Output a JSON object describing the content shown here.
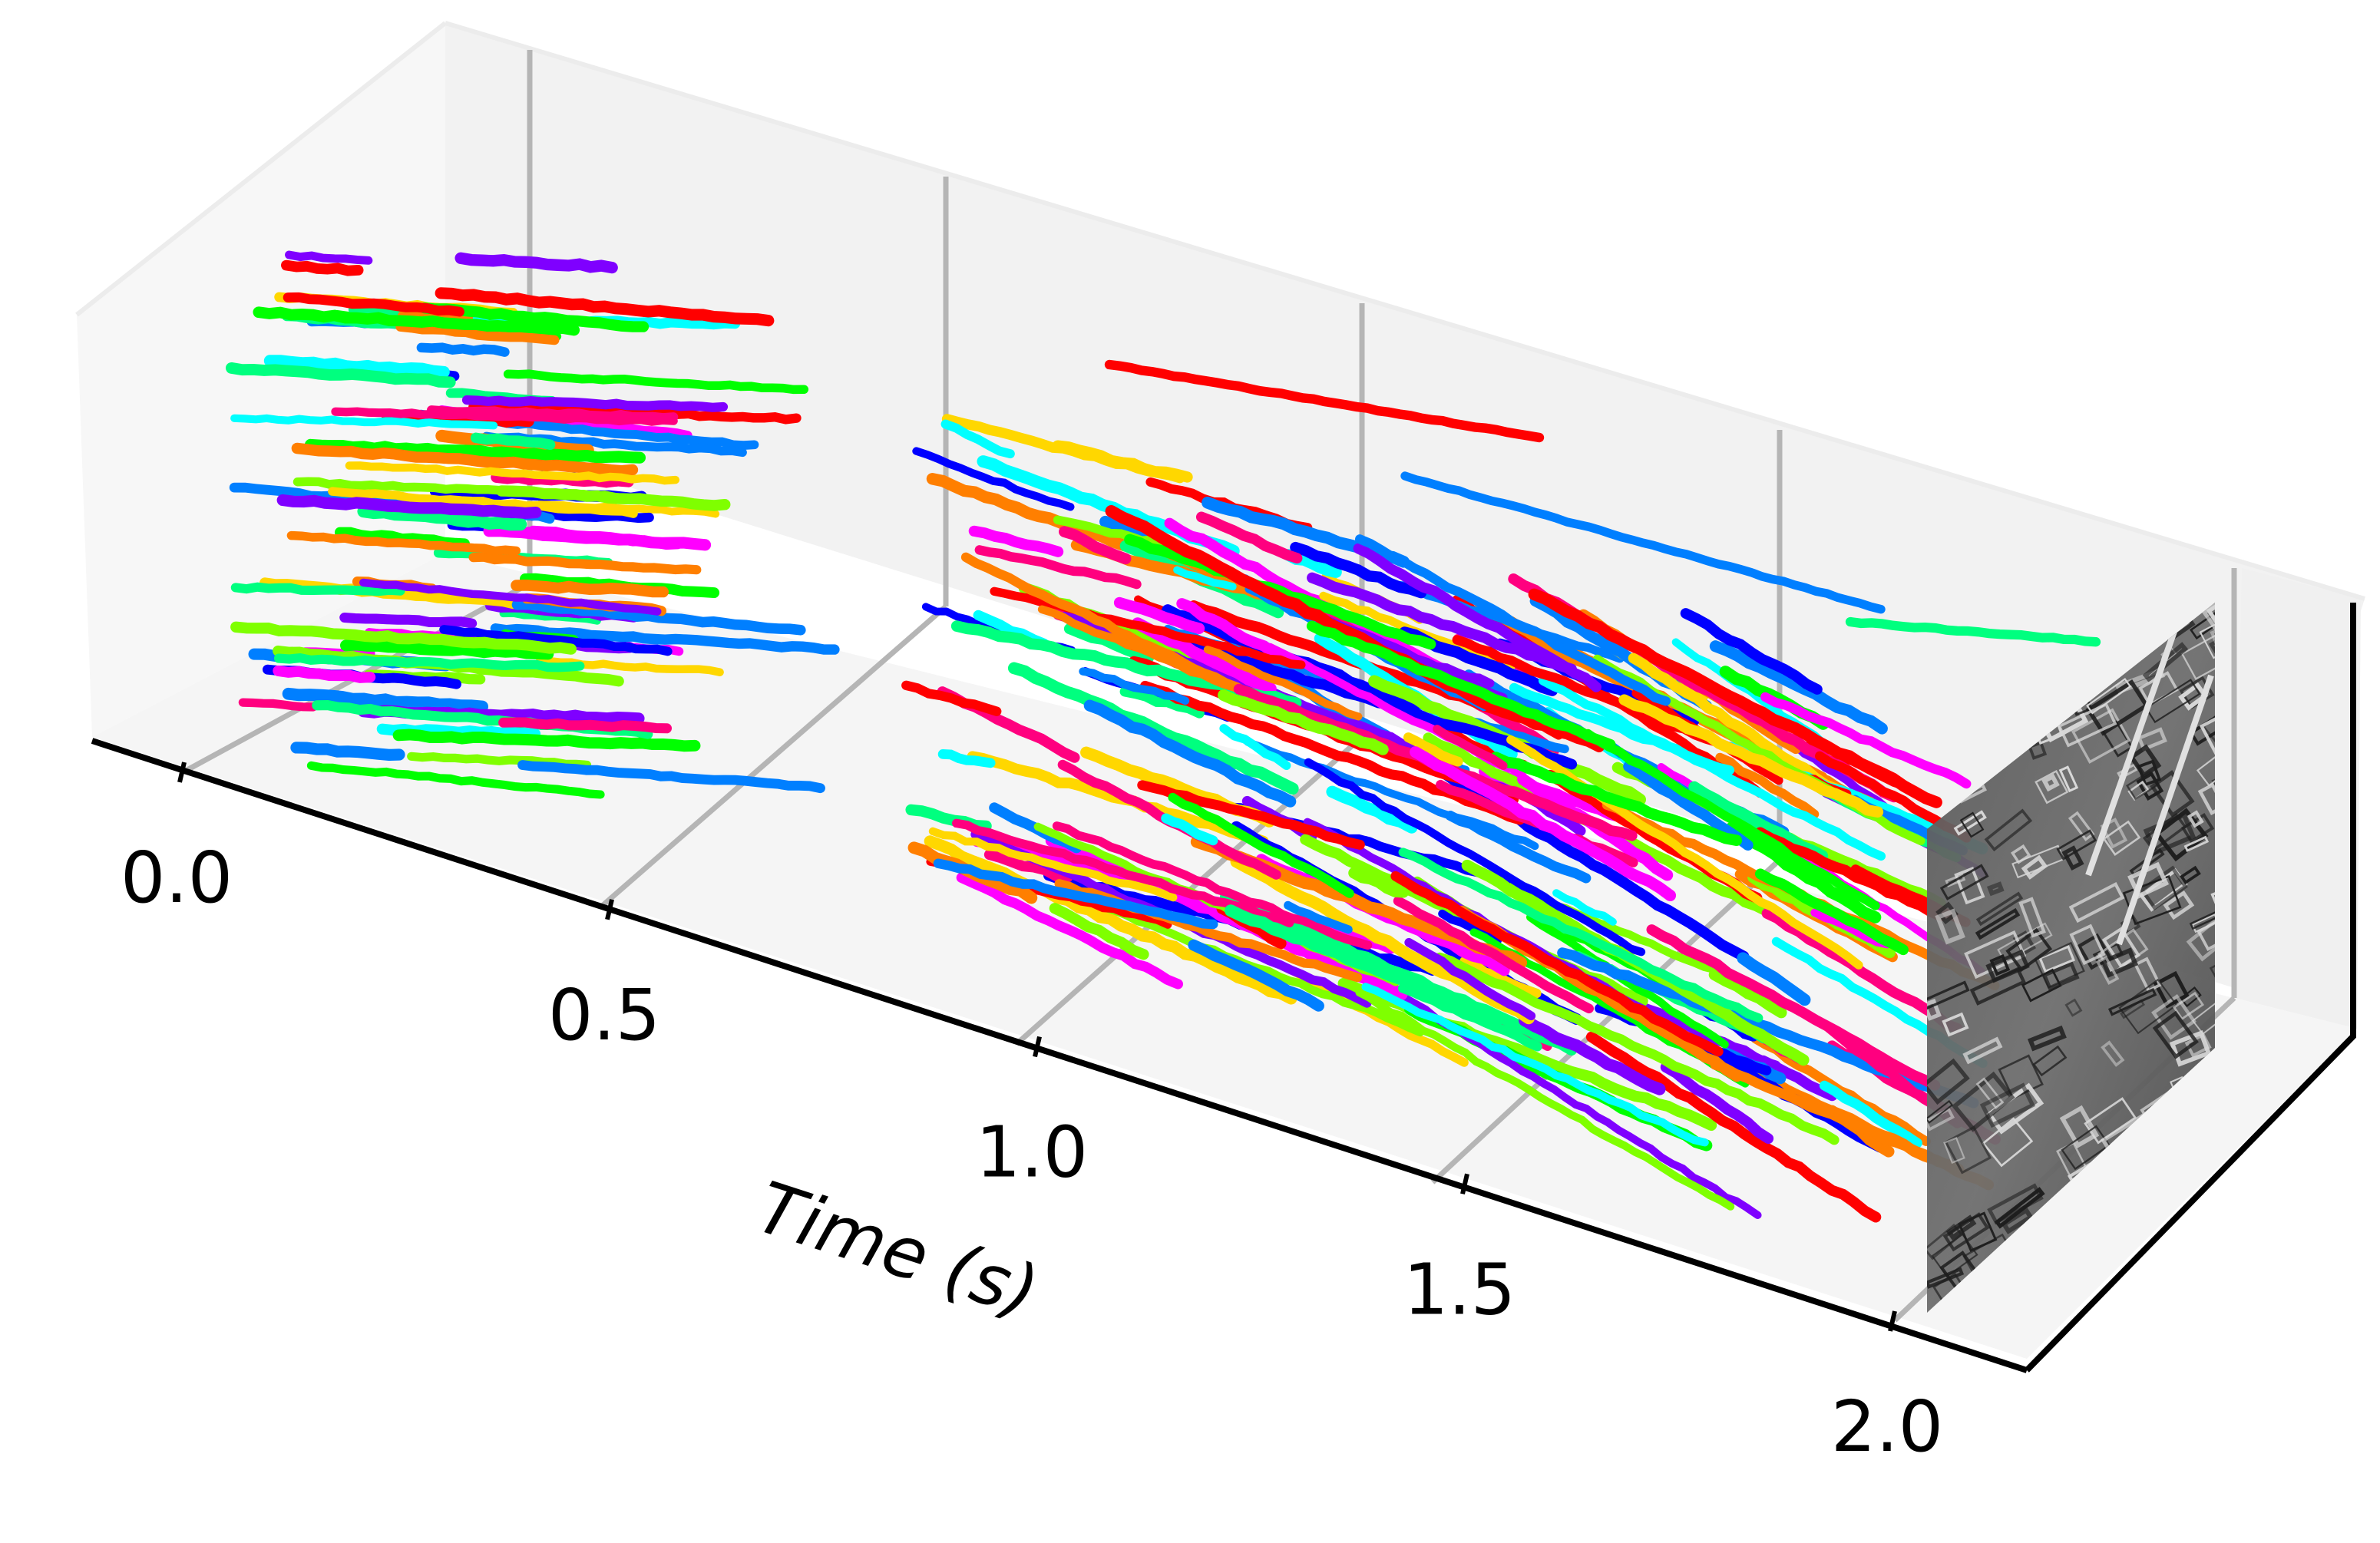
{
  "chart_data": {
    "type": "scatter",
    "subtype": "3d-space-time-feature-tracks",
    "title": "",
    "xlabel": "Time (s)",
    "ylabel": "",
    "zlabel": "",
    "xlim": [
      0.0,
      2.0
    ],
    "x_ticks": [
      "0.0",
      "0.5",
      "1.0",
      "1.5",
      "2.0"
    ],
    "grid": true,
    "legend": "none",
    "colormap": "hsv",
    "colors": [
      "#ff0000",
      "#ff7f00",
      "#ffd700",
      "#7fff00",
      "#00ff00",
      "#00ff7f",
      "#00ffff",
      "#007fff",
      "#0000ff",
      "#7f00ff",
      "#ff00ff",
      "#ff007f"
    ],
    "track_groups": [
      {
        "name": "",
        "t_start": 0.1,
        "t_end": 0.75,
        "count": 90
      },
      {
        "name": "",
        "t_start": 1.05,
        "t_end": 1.95,
        "count": 260
      }
    ],
    "end_frame": {
      "t": 2.0,
      "description": "grayscale event frame image"
    }
  }
}
